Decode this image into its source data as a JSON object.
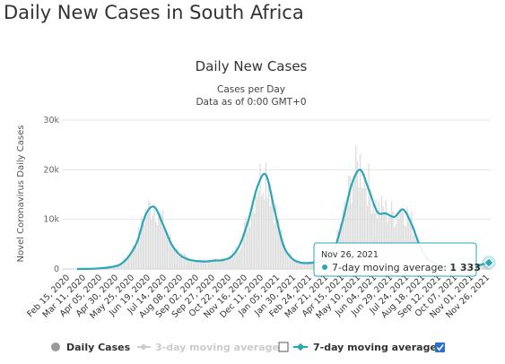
{
  "page": {
    "title": "Daily New Cases in South Africa"
  },
  "chart_data": {
    "type": "bar",
    "title": "Daily New Cases",
    "subtitle_line1": "Cases per Day",
    "subtitle_line2": "Data as of 0:00 GMT+0",
    "ylabel": "Novel Coronavirus Daily Cases",
    "ylim": [
      0,
      30000
    ],
    "y_ticks": [
      0,
      10000,
      20000,
      30000
    ],
    "y_tick_labels": [
      "0",
      "10k",
      "20k",
      "30k"
    ],
    "x_tick_labels": [
      "Feb 15, 2020",
      "Mar 11, 2020",
      "Apr 05, 2020",
      "Apr 30, 2020",
      "May 25, 2020",
      "Jun 19, 2020",
      "Jul 14, 2020",
      "Aug 08, 2020",
      "Sep 02, 2020",
      "Sep 27, 2020",
      "Oct 22, 2020",
      "Nov 16, 2020",
      "Dec 11, 2020",
      "Jan 05, 2021",
      "Jan 30, 2021",
      "Feb 24, 2021",
      "Mar 21, 2021",
      "Apr 15, 2021",
      "May 10, 2021",
      "Jun 04, 2021",
      "Jun 29, 2021",
      "Jul 24, 2021",
      "Aug 18, 2021",
      "Sep 12, 2021",
      "Oct 07, 2021",
      "Nov 01, 2021",
      "Nov 26, 2021"
    ],
    "series": [
      {
        "name": "Daily Cases",
        "color": "#cccccc",
        "visible": true
      },
      {
        "name": "3-day moving average",
        "color": "#cccccc",
        "visible": false
      },
      {
        "name": "7-day moving average",
        "color": "#2aa6b8",
        "visible": true,
        "values": [
          0,
          20,
          60,
          180,
          400,
          900,
          2500,
          5500,
          11000,
          12500,
          9000,
          5000,
          2800,
          1900,
          1600,
          1500,
          1700,
          1800,
          2500,
          5000,
          10000,
          16500,
          19000,
          12000,
          5000,
          2200,
          1300,
          1200,
          1400,
          1800,
          4000,
          10000,
          17000,
          20000,
          16000,
          11500,
          11200,
          10500,
          12000,
          9000,
          4500,
          1800,
          900,
          350,
          280,
          250,
          300,
          800,
          1333
        ]
      }
    ],
    "legend_position": "bottom",
    "grid": true,
    "tooltip": {
      "date": "Nov 26, 2021",
      "label": "7-day moving average:",
      "value": "1 333"
    }
  },
  "legend": {
    "daily_cases": "Daily Cases",
    "three_day": "3-day moving average",
    "seven_day": "7-day moving average",
    "three_day_checked": false,
    "seven_day_checked": true
  },
  "colors": {
    "accent": "#2aa6b8",
    "bars": "#dcdcdc",
    "grid": "#e6e6e6",
    "checkbox": "#2a6fd6"
  }
}
